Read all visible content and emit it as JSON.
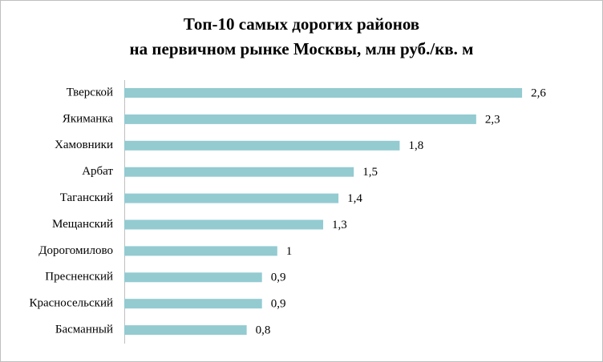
{
  "chart_data": {
    "type": "bar",
    "orientation": "horizontal",
    "title": [
      "Топ-10 самых дорогих районов",
      "на первичном рынке Москвы, млн руб./кв. м"
    ],
    "categories": [
      "Тверской",
      "Якиманка",
      "Хамовники",
      "Арбат",
      "Таганский",
      "Мещанский",
      "Дорогомилово",
      "Пресненский",
      "Красносельский",
      "Басманный"
    ],
    "values": [
      2.6,
      2.3,
      1.8,
      1.5,
      1.4,
      1.3,
      1,
      0.9,
      0.9,
      0.8
    ],
    "value_labels": [
      "2,6",
      "2,3",
      "1,8",
      "1,5",
      "1,4",
      "1,3",
      "1",
      "0,9",
      "0,9",
      "0,8"
    ],
    "color": "#93cbd1"
  }
}
